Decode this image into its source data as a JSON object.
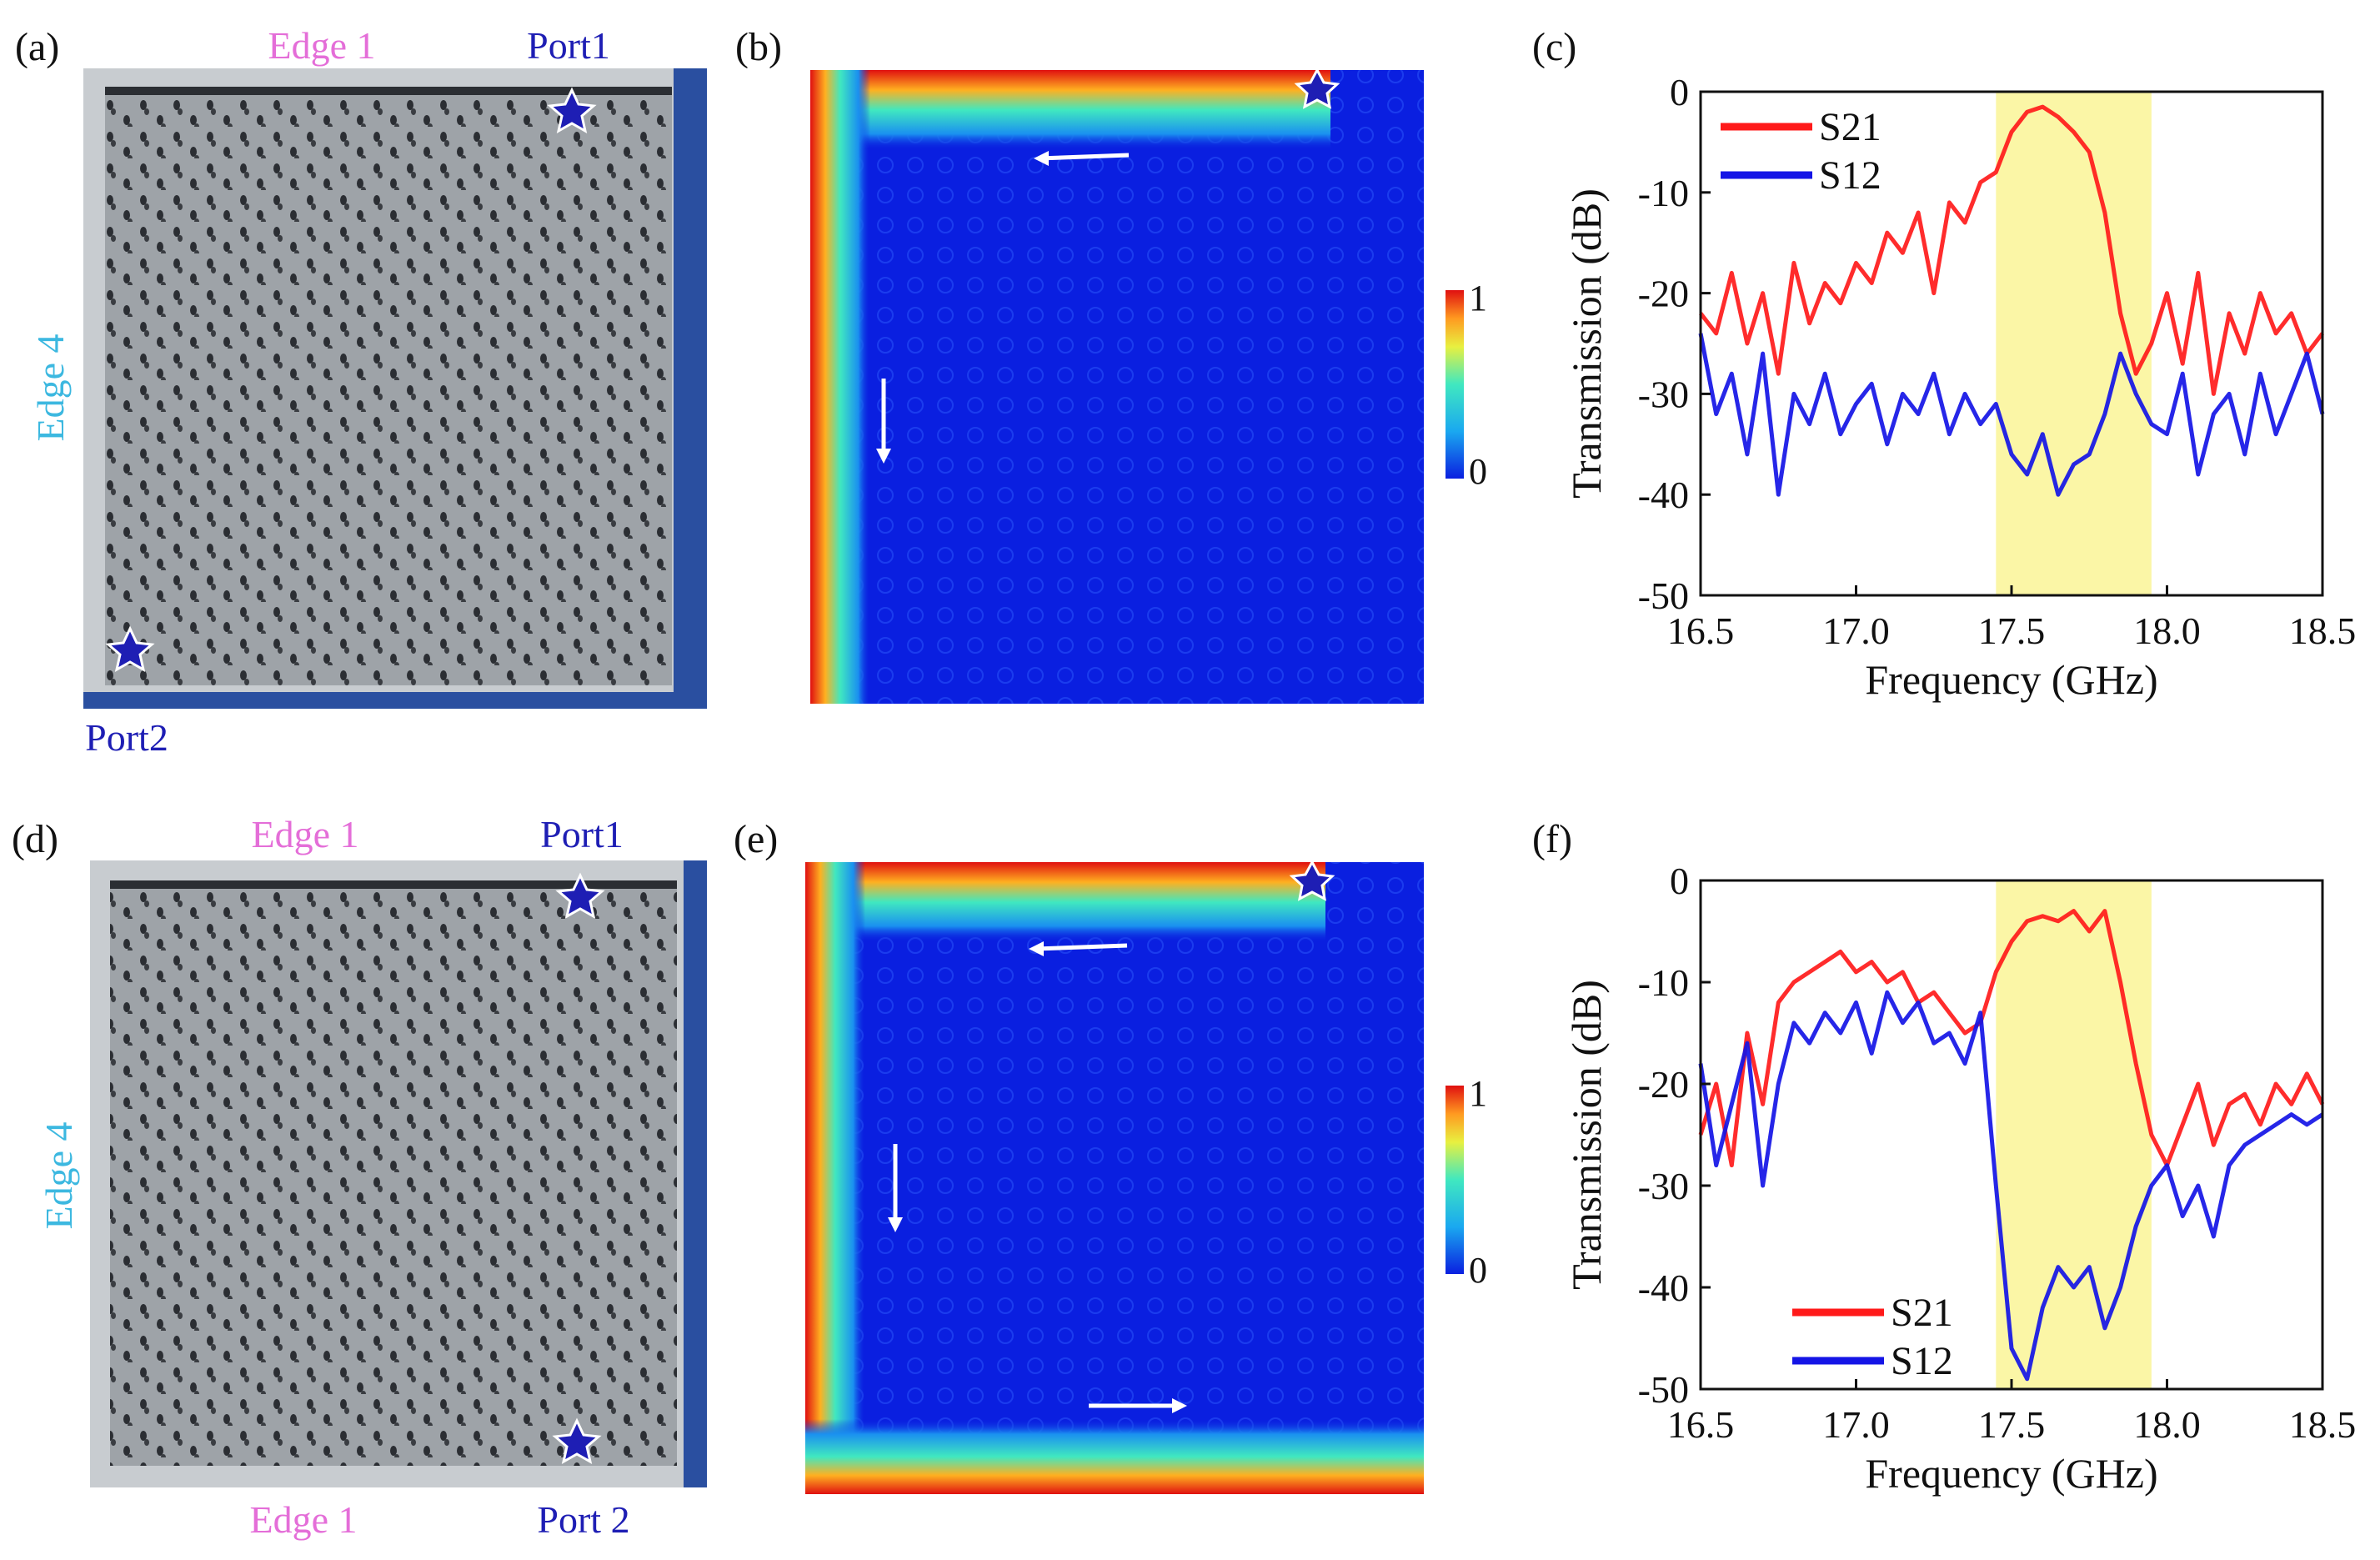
{
  "figure": {
    "panels": {
      "a": {
        "label": "(a)",
        "edge_top": "Edge 1",
        "edge_left": "Edge 4",
        "port_top": "Port1",
        "port_bottom": "Port2"
      },
      "b": {
        "label": "(b)",
        "colorbar_max": "1",
        "colorbar_min": "0"
      },
      "c": {
        "label": "(c)"
      },
      "d": {
        "label": "(d)",
        "edge_top": "Edge 1",
        "edge_left": "Edge 4",
        "edge_bottom": "Edge 1",
        "port_top": "Port1",
        "port_bottom": "Port 2"
      },
      "e": {
        "label": "(e)",
        "colorbar_max": "1",
        "colorbar_min": "0"
      },
      "f": {
        "label": "(f)"
      }
    },
    "colors": {
      "edge": "#e46ed8",
      "edge4": "#3cb8e0",
      "port": "#1e1eb4",
      "s21": "#ff1a1a",
      "s12": "#1414e6",
      "band": "#fbf6a6"
    }
  },
  "chart_data": [
    {
      "panel": "c",
      "type": "line",
      "title": "",
      "xlabel": "Frequency (GHz)",
      "ylabel": "Transmission (dB)",
      "xlim": [
        16.5,
        18.5
      ],
      "ylim": [
        -50,
        0
      ],
      "xticks": [
        "16.5",
        "17.0",
        "17.5",
        "18.0",
        "18.5"
      ],
      "yticks": [
        "0",
        "-10",
        "-20",
        "-30",
        "-40",
        "-50"
      ],
      "highlight_band": [
        17.45,
        17.95
      ],
      "legend": [
        "S21",
        "S12"
      ],
      "series": [
        {
          "name": "S21",
          "x": [
            16.5,
            16.55,
            16.6,
            16.65,
            16.7,
            16.75,
            16.8,
            16.85,
            16.9,
            16.95,
            17.0,
            17.05,
            17.1,
            17.15,
            17.2,
            17.25,
            17.3,
            17.35,
            17.4,
            17.45,
            17.5,
            17.55,
            17.6,
            17.65,
            17.7,
            17.75,
            17.8,
            17.85,
            17.9,
            17.95,
            18.0,
            18.05,
            18.1,
            18.15,
            18.2,
            18.25,
            18.3,
            18.35,
            18.4,
            18.45,
            18.5
          ],
          "values": [
            -22,
            -24,
            -18,
            -25,
            -20,
            -28,
            -17,
            -23,
            -19,
            -21,
            -17,
            -19,
            -14,
            -16,
            -12,
            -20,
            -11,
            -13,
            -9,
            -8,
            -4,
            -2,
            -1.5,
            -2.5,
            -4,
            -6,
            -12,
            -22,
            -28,
            -25,
            -20,
            -27,
            -18,
            -30,
            -22,
            -26,
            -20,
            -24,
            -22,
            -26,
            -24
          ]
        },
        {
          "name": "S12",
          "x": [
            16.5,
            16.55,
            16.6,
            16.65,
            16.7,
            16.75,
            16.8,
            16.85,
            16.9,
            16.95,
            17.0,
            17.05,
            17.1,
            17.15,
            17.2,
            17.25,
            17.3,
            17.35,
            17.4,
            17.45,
            17.5,
            17.55,
            17.6,
            17.65,
            17.7,
            17.75,
            17.8,
            17.85,
            17.9,
            17.95,
            18.0,
            18.05,
            18.1,
            18.15,
            18.2,
            18.25,
            18.3,
            18.35,
            18.4,
            18.45,
            18.5
          ],
          "values": [
            -24,
            -32,
            -28,
            -36,
            -26,
            -40,
            -30,
            -33,
            -28,
            -34,
            -31,
            -29,
            -35,
            -30,
            -32,
            -28,
            -34,
            -30,
            -33,
            -31,
            -36,
            -38,
            -34,
            -40,
            -37,
            -36,
            -32,
            -26,
            -30,
            -33,
            -34,
            -28,
            -38,
            -32,
            -30,
            -36,
            -28,
            -34,
            -30,
            -26,
            -32
          ]
        }
      ]
    },
    {
      "panel": "f",
      "type": "line",
      "title": "",
      "xlabel": "Frequency (GHz)",
      "ylabel": "Transmission (dB)",
      "xlim": [
        16.5,
        18.5
      ],
      "ylim": [
        -50,
        0
      ],
      "xticks": [
        "16.5",
        "17.0",
        "17.5",
        "18.0",
        "18.5"
      ],
      "yticks": [
        "0",
        "-10",
        "-20",
        "-30",
        "-40",
        "-50"
      ],
      "highlight_band": [
        17.45,
        17.95
      ],
      "legend": [
        "S21",
        "S12"
      ],
      "series": [
        {
          "name": "S21",
          "x": [
            16.5,
            16.55,
            16.6,
            16.65,
            16.7,
            16.75,
            16.8,
            16.85,
            16.9,
            16.95,
            17.0,
            17.05,
            17.1,
            17.15,
            17.2,
            17.25,
            17.3,
            17.35,
            17.4,
            17.45,
            17.5,
            17.55,
            17.6,
            17.65,
            17.7,
            17.75,
            17.8,
            17.85,
            17.9,
            17.95,
            18.0,
            18.05,
            18.1,
            18.15,
            18.2,
            18.25,
            18.3,
            18.35,
            18.4,
            18.45,
            18.5
          ],
          "values": [
            -25,
            -20,
            -28,
            -15,
            -22,
            -12,
            -10,
            -9,
            -8,
            -7,
            -9,
            -8,
            -10,
            -9,
            -12,
            -11,
            -13,
            -15,
            -14,
            -9,
            -6,
            -4,
            -3.5,
            -4,
            -3,
            -5,
            -3,
            -10,
            -18,
            -25,
            -28,
            -24,
            -20,
            -26,
            -22,
            -21,
            -24,
            -20,
            -22,
            -19,
            -22
          ]
        },
        {
          "name": "S12",
          "x": [
            16.5,
            16.55,
            16.6,
            16.65,
            16.7,
            16.75,
            16.8,
            16.85,
            16.9,
            16.95,
            17.0,
            17.05,
            17.1,
            17.15,
            17.2,
            17.25,
            17.3,
            17.35,
            17.4,
            17.45,
            17.5,
            17.55,
            17.6,
            17.65,
            17.7,
            17.75,
            17.8,
            17.85,
            17.9,
            17.95,
            18.0,
            18.05,
            18.1,
            18.15,
            18.2,
            18.25,
            18.3,
            18.35,
            18.4,
            18.45,
            18.5
          ],
          "values": [
            -18,
            -28,
            -22,
            -16,
            -30,
            -20,
            -14,
            -16,
            -13,
            -15,
            -12,
            -17,
            -11,
            -14,
            -12,
            -16,
            -15,
            -18,
            -13,
            -30,
            -46,
            -49,
            -42,
            -38,
            -40,
            -38,
            -44,
            -40,
            -34,
            -30,
            -28,
            -33,
            -30,
            -35,
            -28,
            -26,
            -25,
            -24,
            -23,
            -24,
            -23
          ]
        }
      ]
    }
  ]
}
